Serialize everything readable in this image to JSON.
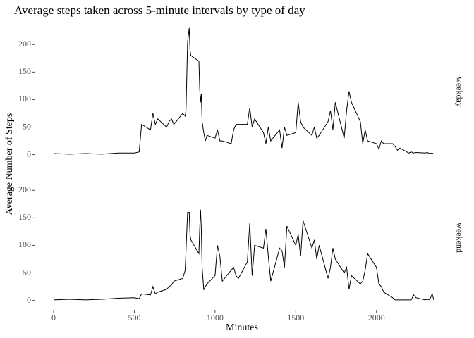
{
  "chart_data": {
    "type": "line",
    "facets": true,
    "title": "Average steps taken across 5-minute intervals by type of day",
    "x_label": "Minutes",
    "y_label": "Average Number of Steps",
    "x": [
      0,
      100,
      200,
      300,
      400,
      500,
      530,
      545,
      600,
      615,
      630,
      645,
      700,
      715,
      730,
      745,
      800,
      815,
      820,
      830,
      840,
      845,
      850,
      900,
      905,
      910,
      915,
      920,
      930,
      940,
      950,
      1000,
      1015,
      1030,
      1045,
      1100,
      1115,
      1130,
      1145,
      1200,
      1215,
      1230,
      1245,
      1300,
      1315,
      1330,
      1345,
      1400,
      1415,
      1430,
      1445,
      1500,
      1515,
      1530,
      1545,
      1600,
      1615,
      1630,
      1645,
      1700,
      1715,
      1730,
      1745,
      1800,
      1815,
      1830,
      1845,
      1900,
      1915,
      1930,
      1945,
      2000,
      2015,
      2030,
      2045,
      2100,
      2115,
      2130,
      2145,
      2200,
      2215,
      2230,
      2245,
      2300,
      2315,
      2330,
      2345,
      2355
    ],
    "series": [
      {
        "name": "weekday",
        "color": "#000000",
        "values": [
          2,
          1,
          2,
          1,
          3,
          3,
          5,
          55,
          45,
          75,
          55,
          65,
          50,
          60,
          65,
          55,
          75,
          70,
          80,
          205,
          230,
          190,
          180,
          170,
          120,
          95,
          110,
          60,
          40,
          25,
          35,
          30,
          45,
          25,
          25,
          20,
          45,
          55,
          55,
          55,
          85,
          50,
          65,
          40,
          20,
          50,
          25,
          45,
          12,
          50,
          35,
          40,
          95,
          60,
          50,
          35,
          50,
          30,
          35,
          60,
          80,
          45,
          95,
          30,
          80,
          115,
          95,
          60,
          20,
          45,
          25,
          20,
          10,
          25,
          20,
          20,
          15,
          8,
          12,
          3,
          5,
          3,
          4,
          3,
          4,
          2,
          3,
          1
        ]
      },
      {
        "name": "weekend",
        "color": "#000000",
        "values": [
          1,
          2,
          1,
          2,
          4,
          5,
          3,
          12,
          10,
          25,
          12,
          15,
          20,
          25,
          28,
          35,
          40,
          55,
          90,
          160,
          160,
          120,
          110,
          85,
          130,
          165,
          130,
          60,
          20,
          25,
          30,
          45,
          100,
          80,
          35,
          55,
          60,
          45,
          40,
          70,
          140,
          45,
          100,
          95,
          130,
          80,
          35,
          95,
          90,
          60,
          135,
          100,
          120,
          80,
          145,
          95,
          110,
          75,
          100,
          40,
          60,
          95,
          75,
          50,
          60,
          20,
          45,
          30,
          35,
          55,
          85,
          60,
          30,
          25,
          15,
          5,
          1,
          1,
          1,
          1,
          1,
          10,
          5,
          1,
          2,
          1,
          12,
          1
        ]
      }
    ],
    "xlim": [
      -118,
      2473
    ],
    "xticks": [
      0,
      500,
      1000,
      1500,
      2000
    ],
    "ylim": [
      -12,
      240
    ],
    "yticks": [
      0,
      50,
      100,
      150,
      200
    ],
    "grid": false
  }
}
